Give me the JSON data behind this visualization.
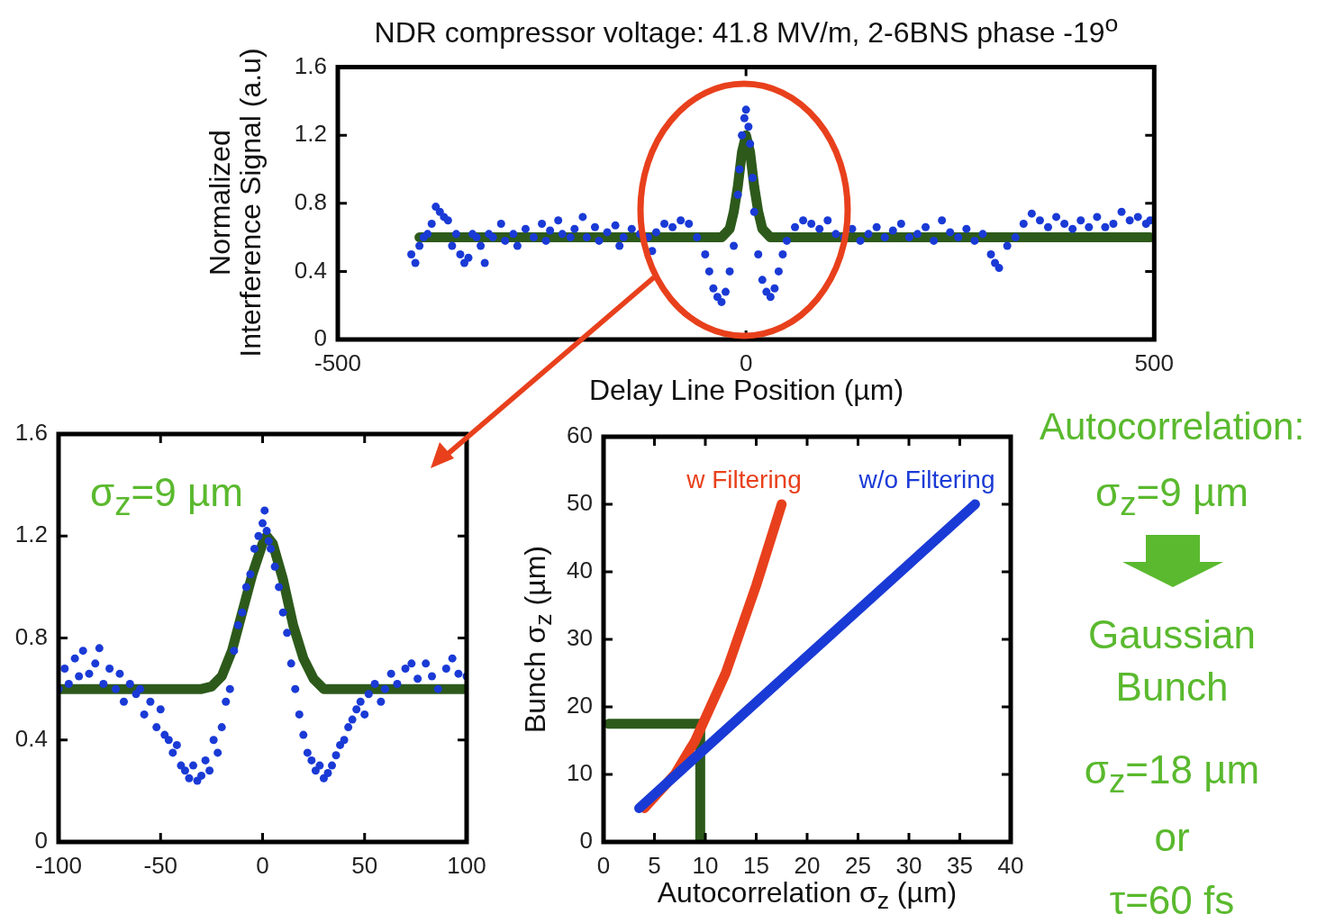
{
  "chart_data": [
    {
      "type": "scatter",
      "title": "NDR compressor voltage: 41.8 MV/m, 2-6BNS phase -19$^{o}$",
      "xlabel": "Delay Line Position (µm)",
      "ylabel": "Normalized\nInterference Signal (a.u)",
      "xlim": [
        -500,
        500
      ],
      "xticks": [
        -500,
        0,
        500
      ],
      "ylim": [
        0,
        1.6
      ],
      "yticks": [
        0,
        0.4,
        0.8,
        1.2,
        1.6
      ],
      "series": [
        {
          "type": "line",
          "marker": "none",
          "color": "#2d5a1b",
          "x": [
            -400,
            -30,
            -20,
            -15,
            -10,
            -5,
            0,
            5,
            10,
            15,
            20,
            30,
            495
          ],
          "values": [
            0.6,
            0.6,
            0.65,
            0.75,
            0.9,
            1.1,
            1.2,
            1.1,
            0.9,
            0.75,
            0.65,
            0.6,
            0.6
          ]
        },
        {
          "type": "scatter",
          "marker": "circle",
          "color": "#1a3ad6",
          "x": [
            -410,
            -405,
            -400,
            -395,
            -390,
            -385,
            -380,
            -375,
            -370,
            -365,
            -360,
            -355,
            -350,
            -345,
            -340,
            -335,
            -330,
            -325,
            -320,
            -315,
            -310,
            -300,
            -295,
            -285,
            -280,
            -270,
            -260,
            -250,
            -245,
            -240,
            -230,
            -225,
            -215,
            -210,
            -200,
            -195,
            -185,
            -180,
            -170,
            -160,
            -155,
            -150,
            -140,
            -130,
            -120,
            -115,
            -110,
            -100,
            -90,
            -80,
            -70,
            -60,
            -50,
            -45,
            -40,
            -35,
            -30,
            -25,
            -20,
            -15,
            -10,
            -8,
            -5,
            -2,
            0,
            3,
            5,
            8,
            10,
            15,
            20,
            25,
            30,
            35,
            40,
            45,
            50,
            60,
            70,
            80,
            90,
            100,
            110,
            120,
            130,
            140,
            150,
            160,
            170,
            180,
            190,
            200,
            210,
            220,
            230,
            240,
            250,
            260,
            270,
            280,
            290,
            300,
            305,
            310,
            320,
            330,
            340,
            350,
            360,
            370,
            380,
            390,
            400,
            410,
            420,
            430,
            440,
            450,
            460,
            470,
            480,
            490,
            495
          ],
          "values": [
            0.5,
            0.45,
            0.55,
            0.6,
            0.62,
            0.68,
            0.78,
            0.75,
            0.72,
            0.7,
            0.55,
            0.62,
            0.5,
            0.45,
            0.48,
            0.62,
            0.6,
            0.55,
            0.45,
            0.62,
            0.6,
            0.68,
            0.58,
            0.62,
            0.55,
            0.65,
            0.6,
            0.68,
            0.58,
            0.64,
            0.7,
            0.62,
            0.6,
            0.65,
            0.72,
            0.6,
            0.66,
            0.58,
            0.63,
            0.67,
            0.55,
            0.6,
            0.65,
            0.62,
            0.6,
            0.52,
            0.63,
            0.68,
            0.66,
            0.7,
            0.68,
            0.6,
            0.5,
            0.4,
            0.3,
            0.25,
            0.22,
            0.28,
            0.4,
            0.55,
            0.85,
            1.0,
            1.2,
            1.3,
            1.35,
            1.25,
            1.15,
            0.95,
            0.75,
            0.5,
            0.35,
            0.28,
            0.25,
            0.3,
            0.4,
            0.5,
            0.58,
            0.66,
            0.7,
            0.68,
            0.65,
            0.7,
            0.62,
            0.6,
            0.65,
            0.58,
            0.62,
            0.66,
            0.6,
            0.64,
            0.68,
            0.6,
            0.62,
            0.66,
            0.58,
            0.7,
            0.63,
            0.6,
            0.65,
            0.58,
            0.62,
            0.5,
            0.45,
            0.42,
            0.55,
            0.6,
            0.68,
            0.74,
            0.7,
            0.66,
            0.72,
            0.68,
            0.65,
            0.7,
            0.66,
            0.72,
            0.66,
            0.68,
            0.75,
            0.7,
            0.72,
            0.68,
            0.7
          ]
        }
      ]
    },
    {
      "type": "scatter",
      "annotations": [
        "σ$_{z}$=9 µm"
      ],
      "xlim": [
        -100,
        100
      ],
      "xticks": [
        -100,
        -50,
        0,
        50,
        100
      ],
      "ylim": [
        0,
        1.6
      ],
      "yticks": [
        0,
        0.4,
        0.8,
        1.2,
        1.6
      ],
      "series": [
        {
          "type": "line",
          "marker": "none",
          "color": "#2d5a1b",
          "x": [
            -100,
            -30,
            -25,
            -20,
            -15,
            -10,
            -5,
            0,
            2,
            5,
            10,
            15,
            20,
            25,
            30,
            100
          ],
          "values": [
            0.6,
            0.6,
            0.61,
            0.65,
            0.75,
            0.9,
            1.05,
            1.17,
            1.2,
            1.17,
            1.03,
            0.85,
            0.72,
            0.64,
            0.6,
            0.6
          ]
        },
        {
          "type": "scatter",
          "marker": "circle",
          "color": "#1a3ad6",
          "x": [
            -100,
            -97,
            -95,
            -92,
            -90,
            -88,
            -85,
            -82,
            -80,
            -78,
            -75,
            -72,
            -70,
            -68,
            -65,
            -62,
            -60,
            -58,
            -55,
            -52,
            -50,
            -48,
            -46,
            -44,
            -42,
            -40,
            -38,
            -36,
            -34,
            -32,
            -30,
            -28,
            -26,
            -24,
            -22,
            -20,
            -18,
            -16,
            -14,
            -12,
            -10,
            -8,
            -6,
            -4,
            -2,
            0,
            1,
            2,
            3,
            4,
            6,
            8,
            10,
            12,
            14,
            16,
            18,
            20,
            22,
            24,
            26,
            28,
            30,
            32,
            34,
            36,
            38,
            40,
            42,
            44,
            46,
            48,
            50,
            52,
            55,
            58,
            60,
            63,
            66,
            70,
            73,
            76,
            80,
            83,
            86,
            90,
            93,
            96,
            100
          ],
          "values": [
            0.6,
            0.68,
            0.62,
            0.72,
            0.65,
            0.75,
            0.66,
            0.7,
            0.76,
            0.62,
            0.68,
            0.6,
            0.66,
            0.55,
            0.62,
            0.58,
            0.6,
            0.5,
            0.55,
            0.45,
            0.52,
            0.42,
            0.4,
            0.35,
            0.38,
            0.3,
            0.28,
            0.25,
            0.3,
            0.24,
            0.26,
            0.32,
            0.28,
            0.4,
            0.35,
            0.45,
            0.55,
            0.6,
            0.75,
            0.85,
            0.9,
            1.0,
            1.05,
            1.15,
            1.2,
            1.25,
            1.3,
            1.22,
            1.18,
            1.15,
            1.08,
            1.0,
            0.9,
            0.82,
            0.7,
            0.6,
            0.5,
            0.42,
            0.35,
            0.32,
            0.28,
            0.3,
            0.25,
            0.27,
            0.3,
            0.34,
            0.38,
            0.4,
            0.45,
            0.48,
            0.52,
            0.55,
            0.5,
            0.58,
            0.62,
            0.55,
            0.6,
            0.66,
            0.62,
            0.68,
            0.7,
            0.64,
            0.7,
            0.65,
            0.6,
            0.68,
            0.72,
            0.66,
            0.65
          ]
        }
      ]
    },
    {
      "type": "line",
      "xlabel": "Autocorrelation σ$_{z}$ (µm)",
      "ylabel": "Bunch σ$_{z}$ (µm)",
      "xlim": [
        0,
        40
      ],
      "xticks": [
        0,
        5,
        10,
        15,
        20,
        25,
        30,
        35,
        40
      ],
      "ylim": [
        0,
        60
      ],
      "yticks": [
        0,
        10,
        20,
        30,
        40,
        50,
        60
      ],
      "series": [
        {
          "name": "w/o Filtering",
          "color": "#1a3ad6",
          "x": [
            3.5,
            36.5
          ],
          "values": [
            5,
            50
          ]
        },
        {
          "name": "w Filtering",
          "color": "#e8401c",
          "x": [
            4,
            7,
            9,
            12,
            15,
            17.5
          ],
          "values": [
            5,
            10,
            15,
            25,
            38,
            50
          ]
        },
        {
          "color": "#2d5a1b",
          "x": [
            0.5,
            9.5,
            9.5
          ],
          "values": [
            17.5,
            17.5,
            0
          ]
        }
      ]
    },
    {
      "type": "other",
      "annotations": [
        "Autocorrelation:",
        "σ$_{z}$=9 µm",
        "Gaussian",
        "Bunch",
        "σ$_{z}$=18 µm",
        "or",
        "τ=60 fs"
      ]
    }
  ]
}
